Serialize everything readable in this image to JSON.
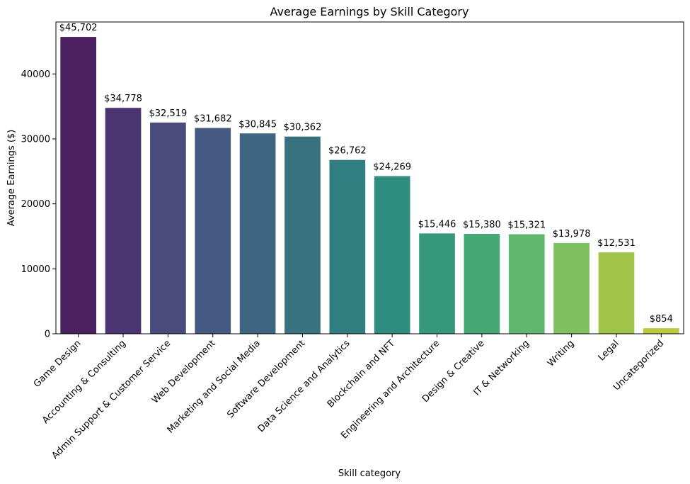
{
  "chart_data": {
    "type": "bar",
    "title": "Average Earnings by Skill Category",
    "xlabel": "Skill category",
    "ylabel": "Average Earnings ($)",
    "ylim": [
      0,
      48000
    ],
    "yticks": [
      0,
      10000,
      20000,
      30000,
      40000
    ],
    "grid": false,
    "categories": [
      "Game Design",
      "Accounting & Consulting",
      "Admin Support & Customer Service",
      "Web Development",
      "Marketing and Social Media",
      "Software Development",
      "Data Science and Analytics",
      "Blockchain and NFT",
      "Engineering and Architecture",
      "Design & Creative",
      "IT & Networking",
      "Writing",
      "Legal",
      "Uncategorized"
    ],
    "values": [
      45702,
      34778,
      32519,
      31682,
      30845,
      30362,
      26762,
      24269,
      15446,
      15380,
      15321,
      13978,
      12531,
      854
    ],
    "data_labels": [
      "$45,702",
      "$34,778",
      "$32,519",
      "$31,682",
      "$30,845",
      "$30,362",
      "$26,762",
      "$24,269",
      "$15,446",
      "$15,380",
      "$15,321",
      "$13,978",
      "$12,531",
      "$854"
    ],
    "colors": [
      "#4a2060",
      "#4a3572",
      "#4b4a7c",
      "#445a82",
      "#3e6680",
      "#37727e",
      "#307e7f",
      "#2e8d7f",
      "#35987a",
      "#45a773",
      "#60b76d",
      "#7fc05f",
      "#a0c447",
      "#bec93a"
    ]
  }
}
